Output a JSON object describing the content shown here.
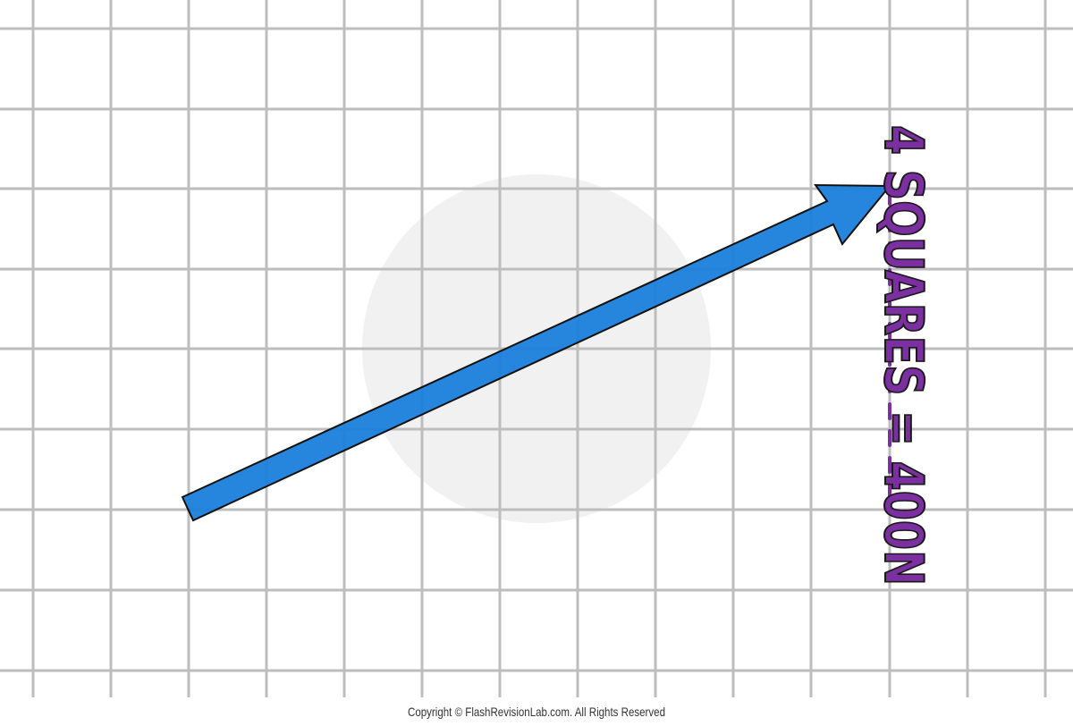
{
  "label": "4 SQUARES = 400N",
  "copyright": "Copyright © FlashRevisionLab.com. All Rights Reserved"
}
